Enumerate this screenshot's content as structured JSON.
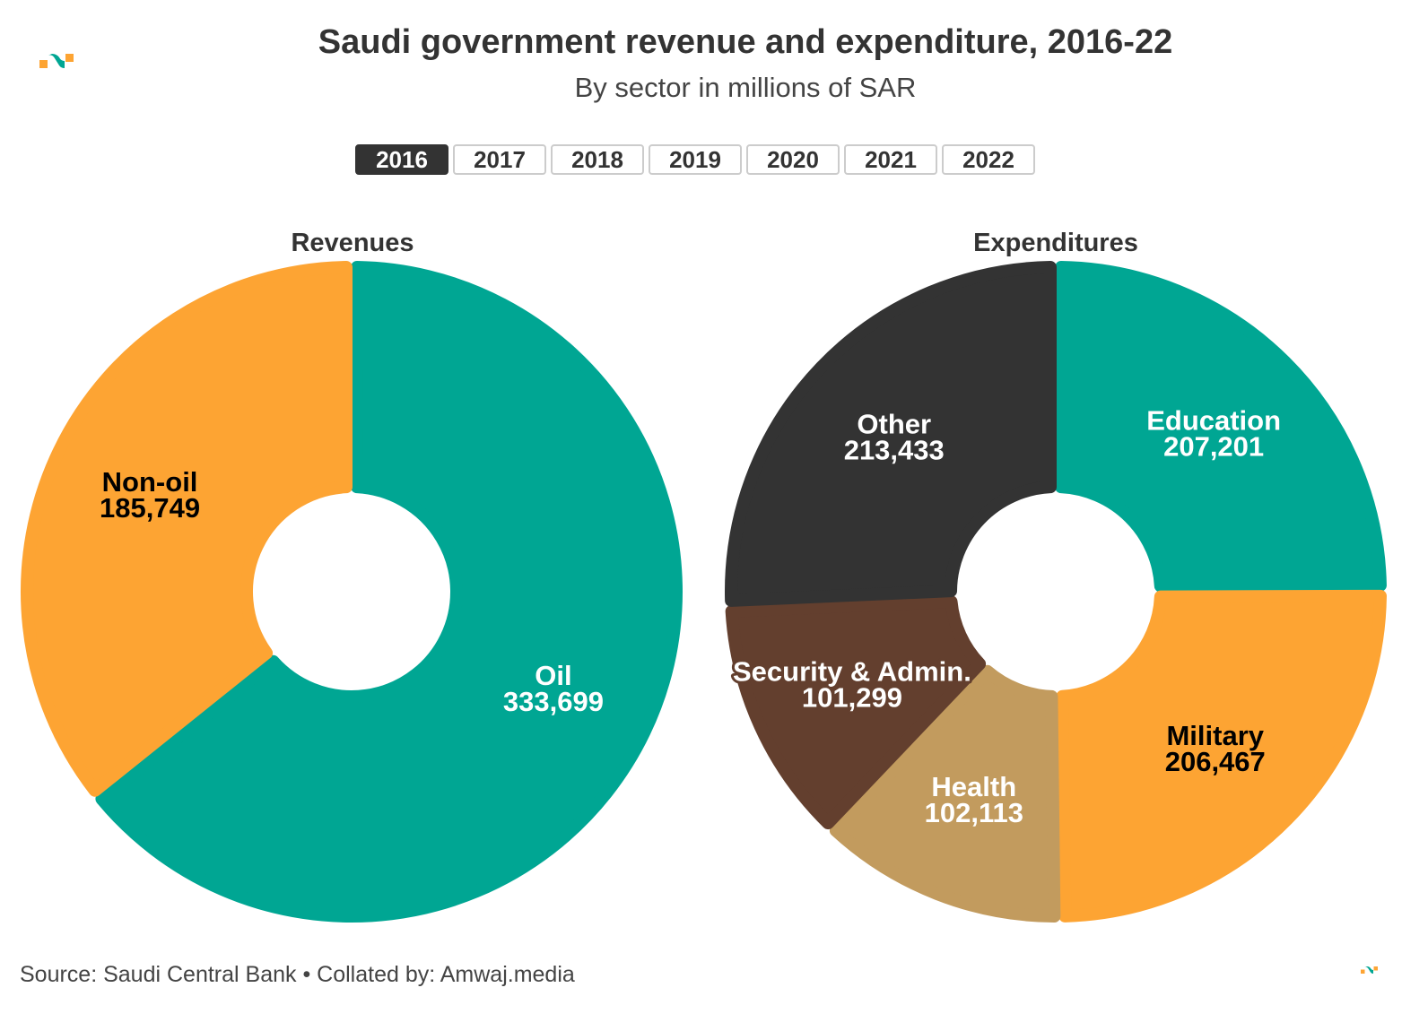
{
  "header": {
    "title": "Saudi government revenue and expenditure, 2016-22",
    "subtitle": "By sector in millions of SAR",
    "logo_icon": "amwaj-logo-icon"
  },
  "year_tabs": {
    "selected": "2016",
    "items": [
      "2016",
      "2017",
      "2018",
      "2019",
      "2020",
      "2021",
      "2022"
    ]
  },
  "colors": {
    "teal": "#00A693",
    "orange": "#FDA433",
    "dark": "#333333",
    "brown": "#633F2E",
    "tan": "#C29B5E",
    "white": "#FFFFFF",
    "black": "#000000"
  },
  "chart_data": [
    {
      "type": "pie",
      "variant": "donut",
      "title": "Revenues",
      "unit": "millions of SAR",
      "year": "2016",
      "slices": [
        {
          "label": "Oil",
          "value": 333699,
          "display": "333,699",
          "color": "#00A693",
          "text_color": "#FFFFFF"
        },
        {
          "label": "Non-oil",
          "value": 185749,
          "display": "185,749",
          "color": "#FDA433",
          "text_color": "#000000"
        }
      ]
    },
    {
      "type": "pie",
      "variant": "donut",
      "title": "Expenditures",
      "unit": "millions of SAR",
      "year": "2016",
      "slices": [
        {
          "label": "Education",
          "value": 207201,
          "display": "207,201",
          "color": "#00A693",
          "text_color": "#FFFFFF"
        },
        {
          "label": "Military",
          "value": 206467,
          "display": "206,467",
          "color": "#FDA433",
          "text_color": "#000000"
        },
        {
          "label": "Health",
          "value": 102113,
          "display": "102,113",
          "color": "#C29B5E",
          "text_color": "#FFFFFF"
        },
        {
          "label": "Security & Admin.",
          "value": 101299,
          "display": "101,299",
          "color": "#633F2E",
          "text_color": "#FFFFFF"
        },
        {
          "label": "Other",
          "value": 213433,
          "display": "213,433",
          "color": "#333333",
          "text_color": "#FFFFFF"
        }
      ]
    }
  ],
  "footer": {
    "source": "Source: Saudi Central Bank • Collated by: Amwaj.media"
  }
}
